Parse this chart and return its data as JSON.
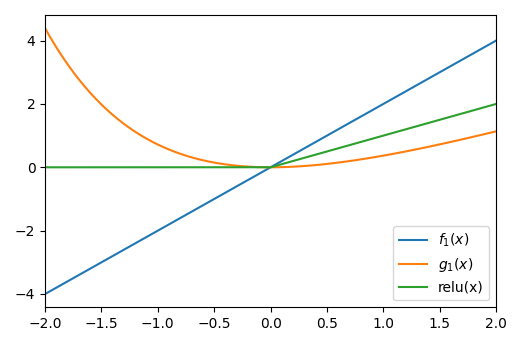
{
  "x_min": -2.0,
  "x_max": 2.0,
  "line_colors": {
    "f1": "#1f77b4",
    "g1": "#ff7f0e",
    "relu": "#2ca02c"
  },
  "legend_labels": {
    "f1": "$f_1(x)$",
    "g1": "$g_1(x)$",
    "relu": "relu(x)"
  },
  "legend_loc": "lower right",
  "figsize": [
    5.22,
    3.46
  ],
  "dpi": 100
}
